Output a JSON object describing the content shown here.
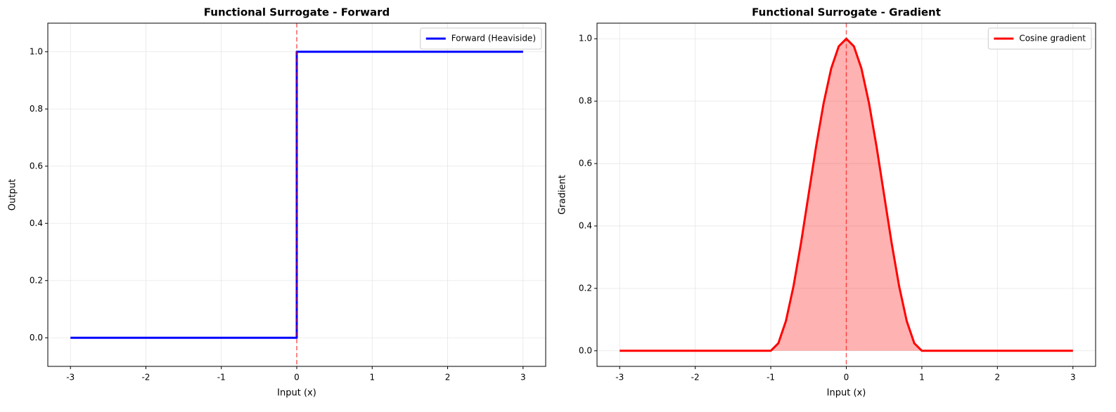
{
  "chart_data": [
    {
      "type": "line",
      "title": "Functional Surrogate - Forward",
      "x_label": "Input (x)",
      "y_label": "Output",
      "x": [
        -3,
        0,
        0,
        3
      ],
      "series": [
        {
          "name": "Forward (Heaviside)",
          "color": "#0000ff",
          "values": [
            0,
            0,
            1,
            1
          ]
        }
      ],
      "xlim": [
        -3.3,
        3.3
      ],
      "ylim": [
        -0.1,
        1.1
      ],
      "xticks": [
        -3,
        -2,
        -1,
        0,
        1,
        2,
        3
      ],
      "yticks": [
        {
          "value": 0,
          "label": "0.0"
        },
        0.2,
        0.4,
        0.6,
        0.8,
        {
          "value": 1,
          "label": "1.0"
        }
      ],
      "grid": true,
      "legend": "upper-right",
      "vline": 0,
      "vline_color": "#ff0000"
    },
    {
      "type": "area",
      "title": "Functional Surrogate - Gradient",
      "x_label": "Input (x)",
      "y_label": "Gradient",
      "x": [
        -3,
        -1,
        -0.9,
        -0.8,
        -0.7,
        -0.6,
        -0.5,
        -0.4,
        -0.3,
        -0.2,
        -0.1,
        0,
        0.1,
        0.2,
        0.3,
        0.4,
        0.5,
        0.6,
        0.7,
        0.8,
        0.9,
        1,
        3
      ],
      "series": [
        {
          "name": "Cosine gradient",
          "color": "#ff0000",
          "fill_color": "#ff0000",
          "values": [
            0,
            0,
            0.024,
            0.095,
            0.206,
            0.345,
            0.5,
            0.655,
            0.794,
            0.905,
            0.976,
            1,
            0.976,
            0.905,
            0.794,
            0.655,
            0.5,
            0.345,
            0.206,
            0.095,
            0.024,
            0,
            0
          ]
        }
      ],
      "xlim": [
        -3.3,
        3.3
      ],
      "ylim": [
        -0.05,
        1.05
      ],
      "xticks": [
        -3,
        -2,
        -1,
        0,
        1,
        2,
        3
      ],
      "yticks": [
        {
          "value": 0,
          "label": "0.0"
        },
        0.2,
        0.4,
        0.6,
        0.8,
        {
          "value": 1,
          "label": "1.0"
        }
      ],
      "grid": true,
      "legend": "upper-right",
      "vline": 0,
      "vline_color": "#ff0000"
    }
  ]
}
